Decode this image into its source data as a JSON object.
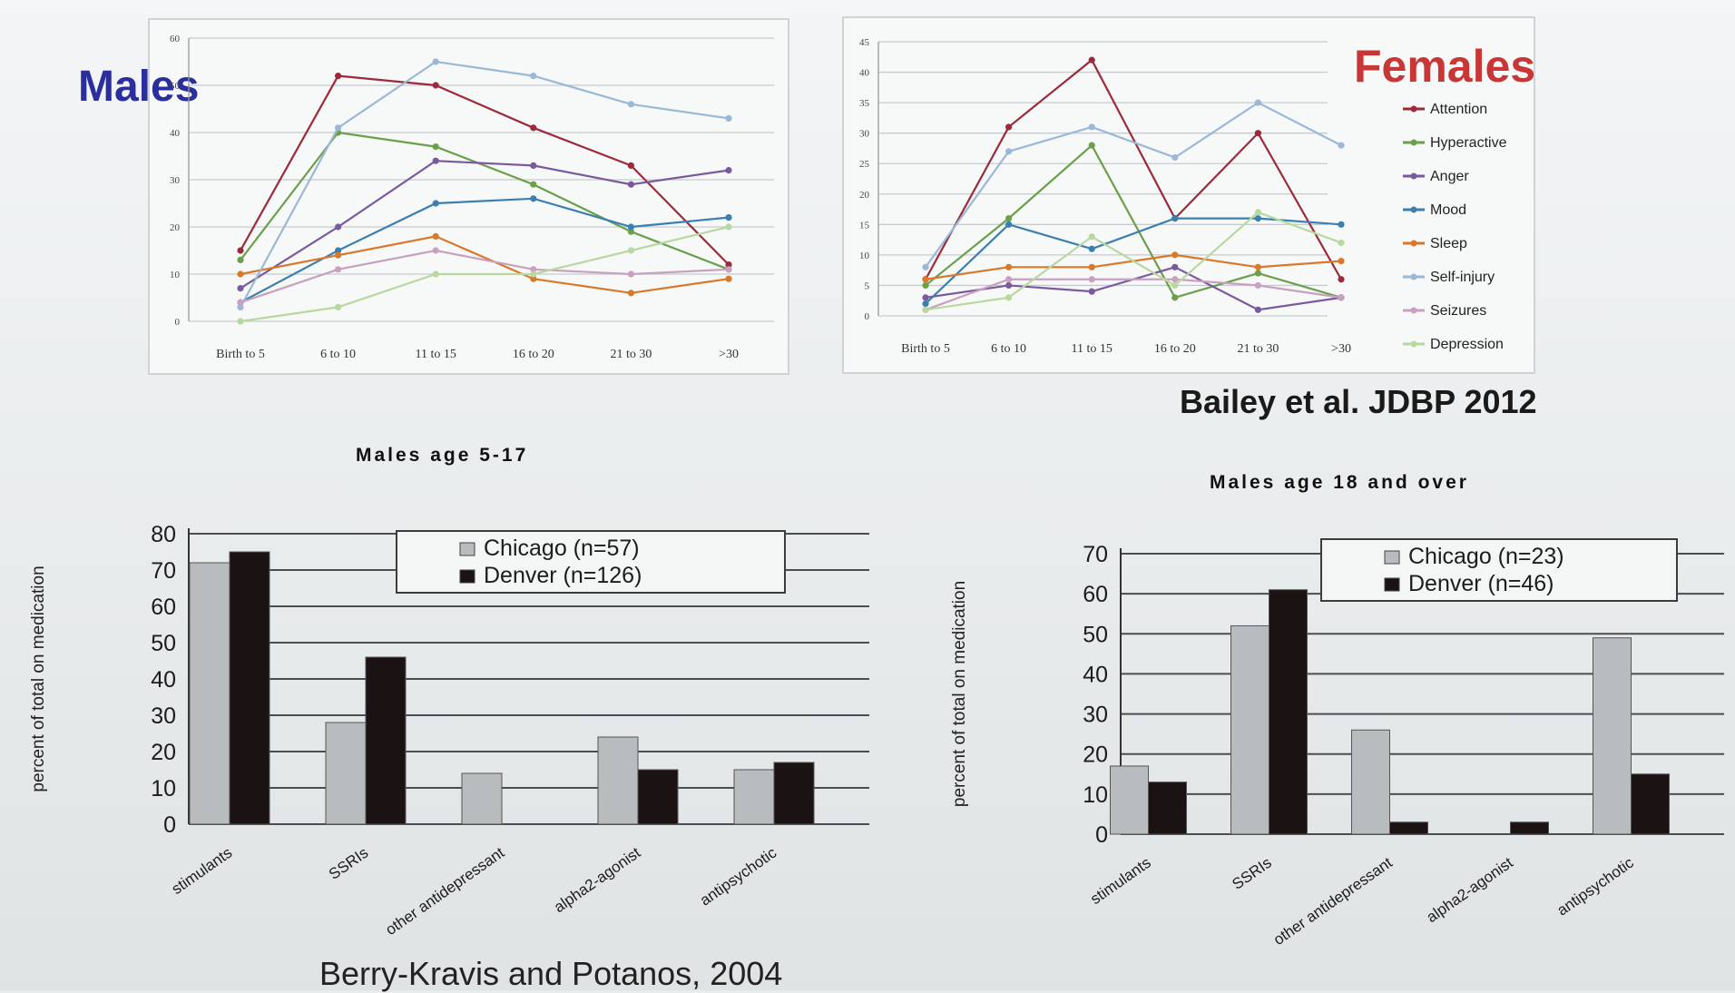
{
  "colors": {
    "attention": "#9b2a3a",
    "hyperactive": "#6aa04a",
    "anger": "#7a5a9e",
    "mood": "#3a7fb0",
    "sleep": "#d9782a",
    "selfinjury": "#9bb8d8",
    "seizures": "#c8a0c0",
    "depression": "#b8d8a0",
    "chicago": "#b8bcbf",
    "denver": "#1a1213"
  },
  "labels": {
    "males_title": "Males",
    "females_title": "Females",
    "bailey_cite": "Bailey et al. JDBP 2012",
    "berry_cite": "Berry-Kravis and Potanos, 2004",
    "bar1_title": "Males age 5-17",
    "bar2_title": "Males age 18 and over"
  },
  "chart_data": [
    {
      "type": "line",
      "title": "Males",
      "categories": [
        "Birth to 5",
        "6 to 10",
        "11 to 15",
        "16 to 20",
        "21 to 30",
        ">30"
      ],
      "ylim": [
        0,
        60
      ],
      "yticks": [
        "0",
        "10",
        "20",
        "30",
        "40",
        "50",
        "60"
      ],
      "grid": true,
      "series": [
        {
          "key": "attention",
          "values": [
            15,
            52,
            50,
            41,
            33,
            12
          ]
        },
        {
          "key": "hyperactive",
          "values": [
            13,
            40,
            37,
            29,
            19,
            11
          ]
        },
        {
          "key": "anger",
          "values": [
            7,
            20,
            34,
            33,
            29,
            32
          ]
        },
        {
          "key": "mood",
          "values": [
            4,
            15,
            25,
            26,
            20,
            22
          ]
        },
        {
          "key": "sleep",
          "values": [
            10,
            14,
            18,
            9,
            6,
            9
          ]
        },
        {
          "key": "selfinjury",
          "values": [
            3,
            41,
            55,
            52,
            46,
            43
          ]
        },
        {
          "key": "seizures",
          "values": [
            4,
            11,
            15,
            11,
            10,
            11
          ]
        },
        {
          "key": "depression",
          "values": [
            0,
            3,
            10,
            10,
            15,
            20
          ]
        }
      ]
    },
    {
      "type": "line",
      "title": "Females",
      "categories": [
        "Birth to 5",
        "6 to 10",
        "11 to 15",
        "16 to 20",
        "21 to 30",
        ">30"
      ],
      "ylim": [
        0,
        45
      ],
      "yticks": [
        "0",
        "5",
        "10",
        "15",
        "20",
        "25",
        "30",
        "35",
        "40",
        "45"
      ],
      "grid": true,
      "legend_position": "right",
      "series": [
        {
          "name": "Attention",
          "key": "attention",
          "values": [
            6,
            31,
            42,
            16,
            30,
            6
          ]
        },
        {
          "name": "Hyperactive",
          "key": "hyperactive",
          "values": [
            5,
            16,
            28,
            3,
            7,
            3
          ]
        },
        {
          "name": "Anger",
          "key": "anger",
          "values": [
            3,
            5,
            4,
            8,
            1,
            3
          ]
        },
        {
          "name": "Mood",
          "key": "mood",
          "values": [
            2,
            15,
            11,
            16,
            16,
            15
          ]
        },
        {
          "name": "Sleep",
          "key": "sleep",
          "values": [
            6,
            8,
            8,
            10,
            8,
            9
          ]
        },
        {
          "name": "Self-injury",
          "key": "selfinjury",
          "values": [
            8,
            27,
            31,
            26,
            35,
            28
          ]
        },
        {
          "name": "Seizures",
          "key": "seizures",
          "values": [
            1,
            6,
            6,
            6,
            5,
            3
          ]
        },
        {
          "name": "Depression",
          "key": "depression",
          "values": [
            1,
            3,
            13,
            5,
            17,
            12
          ]
        }
      ]
    },
    {
      "type": "bar",
      "title": "Males age 5-17",
      "ylabel": "percent of total on medication",
      "categories": [
        "stimulants",
        "SSRIs",
        "other antidepressant",
        "alpha2-agonist",
        "antipsychotic"
      ],
      "ylim": [
        0,
        80
      ],
      "yticks": [
        "0",
        "10",
        "20",
        "30",
        "40",
        "50",
        "60",
        "70",
        "80"
      ],
      "grid": true,
      "legend_position": "top-center",
      "series": [
        {
          "name": "Chicago (n=57)",
          "key": "chicago",
          "values": [
            72,
            28,
            14,
            24,
            15
          ]
        },
        {
          "name": "Denver (n=126)",
          "key": "denver",
          "values": [
            75,
            46,
            0,
            15,
            17
          ]
        }
      ]
    },
    {
      "type": "bar",
      "title": "Males age 18 and over",
      "ylabel": "percent of total on medication",
      "categories": [
        "stimulants",
        "SSRIs",
        "other antidepressant",
        "alpha2-agonist",
        "antipsychotic"
      ],
      "ylim": [
        0,
        70
      ],
      "yticks": [
        "0",
        "10",
        "20",
        "30",
        "40",
        "50",
        "60",
        "70"
      ],
      "grid": true,
      "legend_position": "top-center",
      "series": [
        {
          "name": "Chicago (n=23)",
          "key": "chicago",
          "values": [
            17,
            52,
            26,
            0,
            49
          ]
        },
        {
          "name": "Denver (n=46)",
          "key": "denver",
          "values": [
            13,
            61,
            3,
            3,
            15
          ]
        }
      ]
    }
  ]
}
